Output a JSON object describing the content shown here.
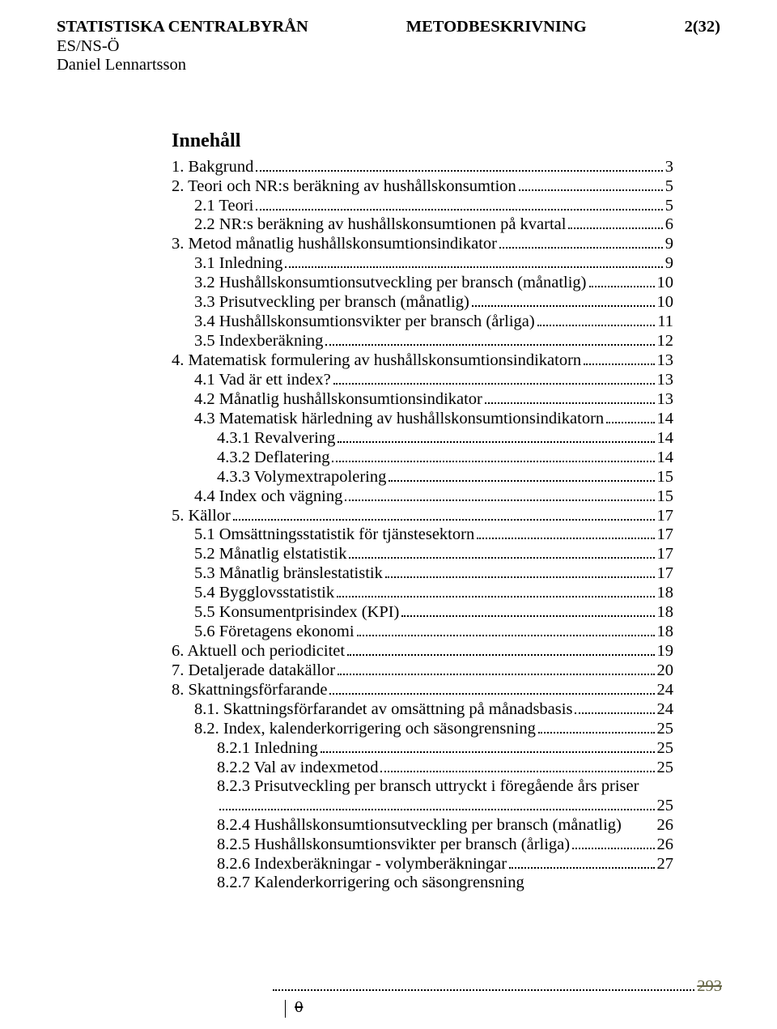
{
  "header": {
    "org": "STATISTISKA CENTRALBYRÅN",
    "title": "METODBESKRIVNING",
    "page": "2(32)",
    "unit": "ES/NS-Ö",
    "author": "Daniel Lennartsson"
  },
  "toc_title": "Innehåll",
  "toc": [
    {
      "indent": 0,
      "label": "1. Bakgrund",
      "page": "3"
    },
    {
      "indent": 0,
      "label": "2. Teori och NR:s beräkning av hushållskonsumtion",
      "page": "5"
    },
    {
      "indent": 1,
      "label": "2.1 Teori",
      "page": "5"
    },
    {
      "indent": 1,
      "label": "2.2 NR:s beräkning av hushållskonsumtionen på kvartal",
      "page": "6"
    },
    {
      "indent": 0,
      "label": "3. Metod månatlig hushållskonsumtionsindikator",
      "page": "9"
    },
    {
      "indent": 1,
      "label": "3.1 Inledning",
      "page": "9"
    },
    {
      "indent": 1,
      "label": "3.2 Hushållskonsumtionsutveckling per bransch (månatlig)",
      "page": "10"
    },
    {
      "indent": 1,
      "label": "3.3 Prisutveckling per bransch (månatlig)",
      "page": "10"
    },
    {
      "indent": 1,
      "label": "3.4 Hushållskonsumtionsvikter per bransch (årliga)",
      "page": "11"
    },
    {
      "indent": 1,
      "label": "3.5 Indexberäkning",
      "page": "12"
    },
    {
      "indent": 0,
      "label": "4. Matematisk formulering av hushållskonsumtionsindikatorn",
      "page": "13"
    },
    {
      "indent": 1,
      "label": "4.1 Vad är ett index?",
      "page": "13"
    },
    {
      "indent": 1,
      "label": "4.2 Månatlig hushållskonsumtionsindikator",
      "page": "13"
    },
    {
      "indent": 1,
      "label": "4.3 Matematisk härledning av hushållskonsumtionsindikatorn",
      "page": "14"
    },
    {
      "indent": 2,
      "label": "4.3.1 Revalvering",
      "page": "14"
    },
    {
      "indent": 2,
      "label": "4.3.2 Deflatering",
      "page": "14"
    },
    {
      "indent": 2,
      "label": "4.3.3 Volymextrapolering",
      "page": "15"
    },
    {
      "indent": 1,
      "label": "4.4 Index och vägning",
      "page": "15"
    },
    {
      "indent": 0,
      "label": "5. Källor",
      "page": "17"
    },
    {
      "indent": 1,
      "label": "5.1 Omsättningsstatistik för tjänstesektorn",
      "page": "17"
    },
    {
      "indent": 1,
      "label": "5.2 Månatlig elstatistik",
      "page": "17"
    },
    {
      "indent": 1,
      "label": "5.3 Månatlig bränslestatistik",
      "page": "17"
    },
    {
      "indent": 1,
      "label": "5.4 Bygglovsstatistik",
      "page": "18"
    },
    {
      "indent": 1,
      "label": "5.5 Konsumentprisindex (KPI)",
      "page": "18"
    },
    {
      "indent": 1,
      "label": "5.6 Företagens ekonomi",
      "page": "18"
    },
    {
      "indent": 0,
      "label": "6. Aktuell och periodicitet",
      "page": "19"
    },
    {
      "indent": 0,
      "label": "7. Detaljerade datakällor",
      "page": "20"
    },
    {
      "indent": 0,
      "label": "8. Skattningsförfarande",
      "page": "24"
    },
    {
      "indent": 1,
      "label": "8.1. Skattningsförfarandet av omsättning på månadsbasis",
      "page": "24"
    },
    {
      "indent": 1,
      "label": "8.2. Index, kalenderkorrigering och säsongrensning",
      "page": "25"
    },
    {
      "indent": 2,
      "label": "8.2.1 Inledning",
      "page": "25"
    },
    {
      "indent": 2,
      "label": "8.2.2 Val av indexmetod",
      "page": "25"
    },
    {
      "indent": 2,
      "label": "8.2.3 Prisutveckling per bransch uttryckt i föregående års priser",
      "wrap_page": "25"
    },
    {
      "indent": 2,
      "label": "8.2.4 Hushållskonsumtionsutveckling per bransch (månatlig)",
      "page_nodots": "26"
    },
    {
      "indent": 2,
      "label": "8.2.5 Hushållskonsumtionsvikter per bransch (årliga)",
      "page": "26"
    },
    {
      "indent": 2,
      "label": "8.2.6 Indexberäkningar - volymberäkningar",
      "page": "27"
    },
    {
      "indent": 2,
      "label": "8.2.7 Kalenderkorrigering och säsongrensning",
      "no_page": true
    }
  ],
  "footer": {
    "zero": "0",
    "struck_page": "293"
  }
}
